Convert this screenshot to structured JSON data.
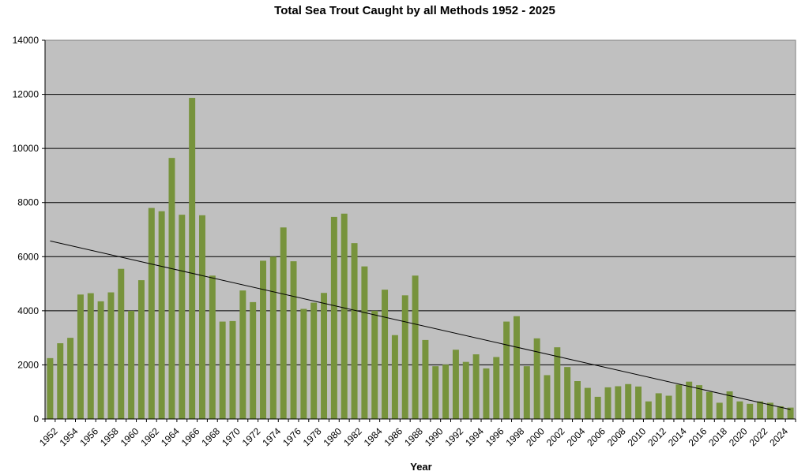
{
  "chart_data": {
    "type": "bar",
    "title": "Total Sea Trout Caught by all Methods 1952 - 2025",
    "xlabel": "Year",
    "ylabel": "",
    "ylim": [
      0,
      14000
    ],
    "yticks": [
      0,
      2000,
      4000,
      6000,
      8000,
      10000,
      12000,
      14000
    ],
    "xtick_labels": [
      "1952",
      "1954",
      "1956",
      "1958",
      "1960",
      "1962",
      "1964",
      "1966",
      "1968",
      "1970",
      "1972",
      "1974",
      "1976",
      "1978",
      "1980",
      "1982",
      "1984",
      "1986",
      "1988",
      "1990",
      "1992",
      "1994",
      "1996",
      "1998",
      "2000",
      "2002",
      "2004",
      "2006",
      "2008",
      "2010",
      "2012",
      "2014",
      "2016",
      "2018",
      "2020",
      "2022",
      "2024"
    ],
    "categories": [
      "1952",
      "1953",
      "1954",
      "1955",
      "1956",
      "1957",
      "1958",
      "1959",
      "1960",
      "1961",
      "1962",
      "1963",
      "1964",
      "1965",
      "1966",
      "1967",
      "1968",
      "1969",
      "1970",
      "1971",
      "1972",
      "1973",
      "1974",
      "1975",
      "1976",
      "1977",
      "1978",
      "1979",
      "1980",
      "1981",
      "1982",
      "1983",
      "1984",
      "1985",
      "1986",
      "1987",
      "1988",
      "1989",
      "1990",
      "1991",
      "1992",
      "1993",
      "1994",
      "1995",
      "1996",
      "1997",
      "1998",
      "1999",
      "2000",
      "2001",
      "2002",
      "2003",
      "2004",
      "2005",
      "2006",
      "2007",
      "2008",
      "2009",
      "2010",
      "2011",
      "2012",
      "2013",
      "2014",
      "2015",
      "2016",
      "2017",
      "2018",
      "2019",
      "2020",
      "2021",
      "2022",
      "2023",
      "2024",
      "2025"
    ],
    "values": [
      2250,
      2800,
      3000,
      4600,
      4650,
      4350,
      4680,
      5550,
      4000,
      5130,
      7800,
      7680,
      9650,
      7550,
      11870,
      7530,
      5300,
      3600,
      3620,
      4750,
      4320,
      5850,
      6000,
      7080,
      5830,
      4070,
      4300,
      4660,
      7470,
      7590,
      6500,
      5640,
      4000,
      4780,
      3100,
      4570,
      5300,
      2920,
      1950,
      2010,
      2560,
      2110,
      2390,
      1870,
      2290,
      3600,
      3800,
      1950,
      2980,
      1620,
      2650,
      1920,
      1400,
      1150,
      820,
      1170,
      1210,
      1290,
      1200,
      650,
      950,
      860,
      1270,
      1380,
      1250,
      1000,
      600,
      1020,
      650,
      560,
      650,
      600,
      470,
      420
    ],
    "trendline": {
      "start": 6580,
      "end": 350
    },
    "bar_color": "#77933c",
    "plot_background": "#c0c0c0",
    "trendline_color": "#000000",
    "grid": true,
    "legend": "none"
  }
}
